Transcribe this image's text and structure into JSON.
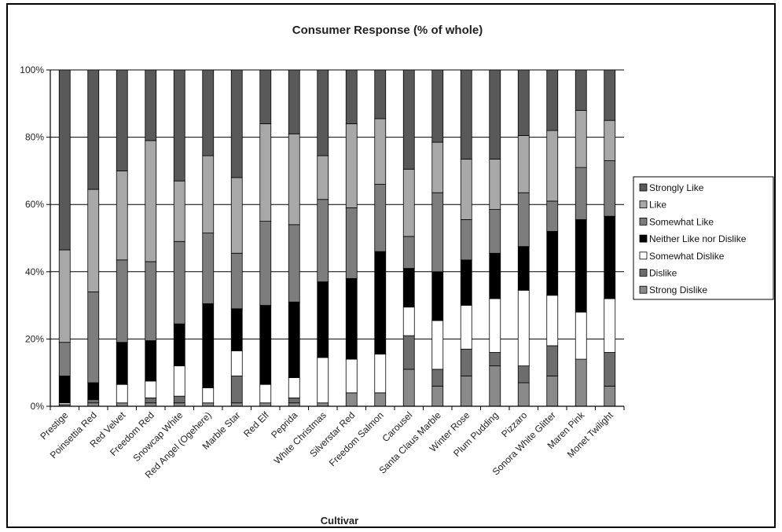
{
  "chart_data": {
    "type": "bar",
    "stacked": true,
    "title": "Consumer Response (% of whole)",
    "xlabel": "Cultivar",
    "ylabel": "",
    "ylim": [
      0,
      100
    ],
    "yticks": [
      "0%",
      "20%",
      "40%",
      "60%",
      "80%",
      "100%"
    ],
    "grid": true,
    "legend_position": "right",
    "categories": [
      "Prestige",
      "Poinsettia Red",
      "Red Velvet",
      "Freedom Red",
      "Snowcap White",
      "Red Angel (Ogehere)",
      "Marble Star",
      "Red Elf",
      "Peprida",
      "White Christmas",
      "Silverstar Red",
      "Freedom Salmon",
      "Carousel",
      "Santa Claus Marble",
      "Winter Rose",
      "Plum Pudding",
      "Pizzaro",
      "Sonora White Glitter",
      "Maren Pink",
      "Monet Twilight"
    ],
    "series": [
      {
        "name": "Strong Dislike",
        "color": "#8a8a8a",
        "values": [
          0,
          1,
          1,
          1,
          1,
          1,
          1,
          1,
          1,
          1,
          4,
          4,
          11,
          6,
          9,
          12,
          7,
          9,
          14,
          6
        ]
      },
      {
        "name": "Dislike",
        "color": "#6d6d6d",
        "values": [
          0.5,
          1,
          0,
          1.5,
          2,
          0,
          8,
          0,
          1.5,
          0,
          0,
          0,
          10,
          5,
          8,
          4,
          5,
          9,
          0,
          10
        ]
      },
      {
        "name": "Somewhat Dislike",
        "color": "#ffffff",
        "values": [
          0.5,
          0,
          5.5,
          5,
          9,
          4.5,
          7.5,
          5.5,
          6,
          13.5,
          10,
          11.5,
          8.5,
          14.5,
          13,
          16,
          22.5,
          15,
          14,
          16
        ]
      },
      {
        "name": "Neither Like nor Dislike",
        "color": "#000000",
        "values": [
          8,
          5,
          12.5,
          12,
          12.5,
          25,
          12.5,
          23.5,
          22.5,
          22.5,
          24,
          30.5,
          11.5,
          14.5,
          13.5,
          13.5,
          13,
          19,
          27.5,
          24.5
        ]
      },
      {
        "name": "Somewhat Like",
        "color": "#7d7d7d",
        "values": [
          10,
          27,
          24.5,
          23.5,
          24.5,
          21,
          16.5,
          25,
          23,
          24.5,
          21,
          20,
          9.5,
          23.5,
          12,
          13,
          16,
          9,
          15.5,
          16.5
        ]
      },
      {
        "name": "Like",
        "color": "#a8a8a8",
        "values": [
          27.5,
          30.5,
          26.5,
          36,
          18,
          23,
          22.5,
          29,
          27,
          13,
          25,
          19.5,
          20,
          15,
          18,
          15,
          17,
          21,
          17,
          12
        ]
      },
      {
        "name": "Strongly Like",
        "color": "#595959",
        "values": [
          53.5,
          35.5,
          30,
          21,
          33,
          25.5,
          32,
          16,
          19,
          25.5,
          16,
          14.5,
          29.5,
          21.5,
          26.5,
          26.5,
          19.5,
          18,
          12,
          15
        ]
      }
    ],
    "legend_order": [
      "Strongly Like",
      "Like",
      "Somewhat Like",
      "Neither Like nor Dislike",
      "Somewhat Dislike",
      "Dislike",
      "Strong Dislike"
    ]
  }
}
